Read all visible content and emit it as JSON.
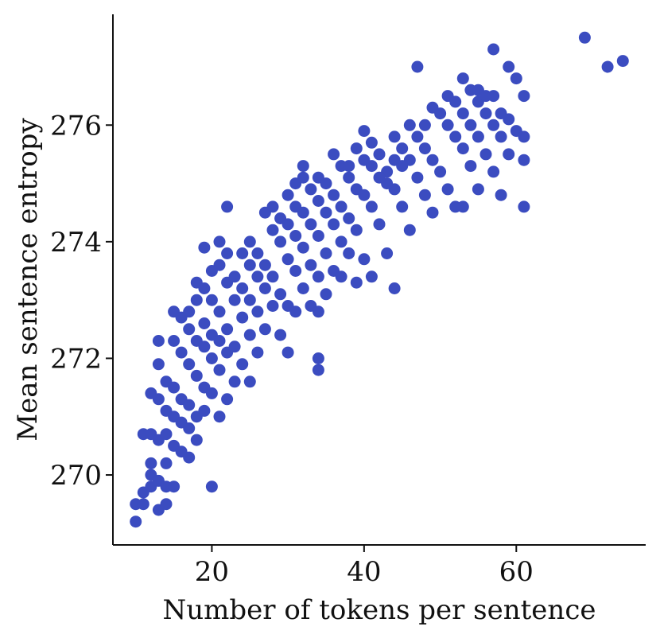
{
  "chart_data": {
    "type": "scatter",
    "xlabel": "Number of tokens per sentence",
    "ylabel": "Mean sentence entropy",
    "xlim": [
      7,
      77
    ],
    "ylim": [
      268.8,
      277.9
    ],
    "xticks": [
      20,
      40,
      60
    ],
    "yticks": [
      270,
      272,
      274,
      276
    ],
    "grid": false,
    "marker_color": "#3b4cc0",
    "series": [
      {
        "points": [
          [
            10,
            269.2
          ],
          [
            10,
            269.5
          ],
          [
            11,
            269.5
          ],
          [
            11,
            269.7
          ],
          [
            12,
            269.8
          ],
          [
            13,
            269.4
          ],
          [
            14,
            269.5
          ],
          [
            12,
            270.0
          ],
          [
            12,
            270.2
          ],
          [
            13,
            269.9
          ],
          [
            14,
            269.8
          ],
          [
            15,
            269.8
          ],
          [
            11,
            270.7
          ],
          [
            12,
            270.7
          ],
          [
            13,
            270.6
          ],
          [
            14,
            270.7
          ],
          [
            15,
            270.5
          ],
          [
            16,
            270.4
          ],
          [
            17,
            270.3
          ],
          [
            14,
            270.2
          ],
          [
            12,
            271.4
          ],
          [
            13,
            271.3
          ],
          [
            14,
            271.1
          ],
          [
            15,
            271.0
          ],
          [
            16,
            270.9
          ],
          [
            17,
            270.8
          ],
          [
            18,
            270.6
          ],
          [
            13,
            271.9
          ],
          [
            14,
            271.6
          ],
          [
            15,
            271.5
          ],
          [
            16,
            271.3
          ],
          [
            17,
            271.2
          ],
          [
            18,
            271.0
          ],
          [
            19,
            271.1
          ],
          [
            20,
            269.8
          ],
          [
            13,
            272.3
          ],
          [
            15,
            272.3
          ],
          [
            16,
            272.1
          ],
          [
            17,
            271.9
          ],
          [
            18,
            271.7
          ],
          [
            19,
            271.5
          ],
          [
            20,
            271.4
          ],
          [
            21,
            271.0
          ],
          [
            15,
            272.8
          ],
          [
            16,
            272.7
          ],
          [
            17,
            272.5
          ],
          [
            18,
            272.3
          ],
          [
            19,
            272.2
          ],
          [
            20,
            272.0
          ],
          [
            21,
            271.8
          ],
          [
            22,
            271.3
          ],
          [
            17,
            272.8
          ],
          [
            18,
            273.0
          ],
          [
            19,
            272.6
          ],
          [
            20,
            272.4
          ],
          [
            21,
            272.3
          ],
          [
            22,
            272.1
          ],
          [
            23,
            271.6
          ],
          [
            18,
            273.3
          ],
          [
            19,
            273.2
          ],
          [
            20,
            273.0
          ],
          [
            21,
            272.8
          ],
          [
            22,
            272.5
          ],
          [
            23,
            272.2
          ],
          [
            24,
            271.9
          ],
          [
            25,
            271.6
          ],
          [
            19,
            273.9
          ],
          [
            20,
            273.5
          ],
          [
            21,
            273.6
          ],
          [
            22,
            273.3
          ],
          [
            23,
            273.0
          ],
          [
            24,
            272.7
          ],
          [
            25,
            272.4
          ],
          [
            26,
            272.1
          ],
          [
            21,
            274.0
          ],
          [
            22,
            273.8
          ],
          [
            23,
            273.4
          ],
          [
            24,
            273.2
          ],
          [
            25,
            273.0
          ],
          [
            26,
            272.8
          ],
          [
            27,
            272.5
          ],
          [
            22,
            274.6
          ],
          [
            24,
            273.8
          ],
          [
            25,
            273.6
          ],
          [
            26,
            273.4
          ],
          [
            27,
            273.2
          ],
          [
            28,
            272.9
          ],
          [
            29,
            272.4
          ],
          [
            30,
            272.1
          ],
          [
            25,
            274.0
          ],
          [
            26,
            273.8
          ],
          [
            27,
            273.6
          ],
          [
            28,
            273.4
          ],
          [
            29,
            273.1
          ],
          [
            30,
            272.9
          ],
          [
            31,
            272.8
          ],
          [
            27,
            274.5
          ],
          [
            28,
            274.2
          ],
          [
            29,
            274.0
          ],
          [
            30,
            273.7
          ],
          [
            31,
            273.5
          ],
          [
            32,
            273.2
          ],
          [
            33,
            272.9
          ],
          [
            34,
            272.8
          ],
          [
            28,
            274.6
          ],
          [
            29,
            274.4
          ],
          [
            30,
            274.3
          ],
          [
            31,
            274.1
          ],
          [
            32,
            273.9
          ],
          [
            33,
            273.6
          ],
          [
            34,
            273.4
          ],
          [
            35,
            273.1
          ],
          [
            34,
            271.8
          ],
          [
            34,
            272.0
          ],
          [
            30,
            274.8
          ],
          [
            31,
            274.6
          ],
          [
            32,
            274.5
          ],
          [
            33,
            274.3
          ],
          [
            34,
            274.1
          ],
          [
            35,
            273.8
          ],
          [
            36,
            273.5
          ],
          [
            37,
            273.4
          ],
          [
            31,
            275.0
          ],
          [
            32,
            275.1
          ],
          [
            33,
            274.9
          ],
          [
            34,
            274.7
          ],
          [
            35,
            274.5
          ],
          [
            36,
            274.3
          ],
          [
            37,
            274.0
          ],
          [
            38,
            273.8
          ],
          [
            39,
            273.3
          ],
          [
            32,
            275.3
          ],
          [
            34,
            275.1
          ],
          [
            35,
            275.0
          ],
          [
            36,
            274.8
          ],
          [
            37,
            274.6
          ],
          [
            38,
            274.4
          ],
          [
            39,
            274.2
          ],
          [
            40,
            273.7
          ],
          [
            41,
            273.4
          ],
          [
            36,
            275.5
          ],
          [
            37,
            275.3
          ],
          [
            38,
            275.1
          ],
          [
            39,
            274.9
          ],
          [
            40,
            274.8
          ],
          [
            41,
            274.6
          ],
          [
            42,
            274.3
          ],
          [
            43,
            273.8
          ],
          [
            44,
            273.2
          ],
          [
            38,
            275.3
          ],
          [
            39,
            275.6
          ],
          [
            40,
            275.9
          ],
          [
            41,
            275.7
          ],
          [
            42,
            275.5
          ],
          [
            43,
            275.2
          ],
          [
            44,
            274.9
          ],
          [
            45,
            274.6
          ],
          [
            46,
            274.2
          ],
          [
            40,
            275.4
          ],
          [
            41,
            275.3
          ],
          [
            42,
            275.1
          ],
          [
            43,
            275.0
          ],
          [
            44,
            275.8
          ],
          [
            45,
            275.6
          ],
          [
            46,
            275.4
          ],
          [
            47,
            275.1
          ],
          [
            48,
            274.8
          ],
          [
            49,
            274.5
          ],
          [
            44,
            275.4
          ],
          [
            45,
            275.3
          ],
          [
            46,
            276.0
          ],
          [
            47,
            275.8
          ],
          [
            48,
            275.6
          ],
          [
            49,
            275.4
          ],
          [
            50,
            275.2
          ],
          [
            51,
            274.9
          ],
          [
            52,
            274.6
          ],
          [
            47,
            277.0
          ],
          [
            48,
            276.0
          ],
          [
            49,
            276.3
          ],
          [
            50,
            276.2
          ],
          [
            51,
            276.0
          ],
          [
            52,
            275.8
          ],
          [
            53,
            275.6
          ],
          [
            54,
            275.3
          ],
          [
            55,
            274.9
          ],
          [
            51,
            276.5
          ],
          [
            52,
            276.4
          ],
          [
            53,
            276.2
          ],
          [
            54,
            276.0
          ],
          [
            55,
            275.8
          ],
          [
            56,
            275.5
          ],
          [
            57,
            275.2
          ],
          [
            53,
            276.8
          ],
          [
            54,
            276.6
          ],
          [
            55,
            276.4
          ],
          [
            56,
            276.2
          ],
          [
            57,
            276.0
          ],
          [
            58,
            275.8
          ],
          [
            59,
            275.5
          ],
          [
            55,
            276.6
          ],
          [
            56,
            276.5
          ],
          [
            57,
            276.5
          ],
          [
            58,
            276.2
          ],
          [
            59,
            276.1
          ],
          [
            60,
            275.9
          ],
          [
            61,
            275.8
          ],
          [
            57,
            277.3
          ],
          [
            59,
            277.0
          ],
          [
            60,
            276.8
          ],
          [
            61,
            276.5
          ],
          [
            61,
            275.4
          ],
          [
            61,
            274.6
          ],
          [
            58,
            274.8
          ],
          [
            53,
            274.6
          ],
          [
            69,
            277.5
          ],
          [
            72,
            277.0
          ],
          [
            74,
            277.1
          ]
        ]
      }
    ]
  }
}
